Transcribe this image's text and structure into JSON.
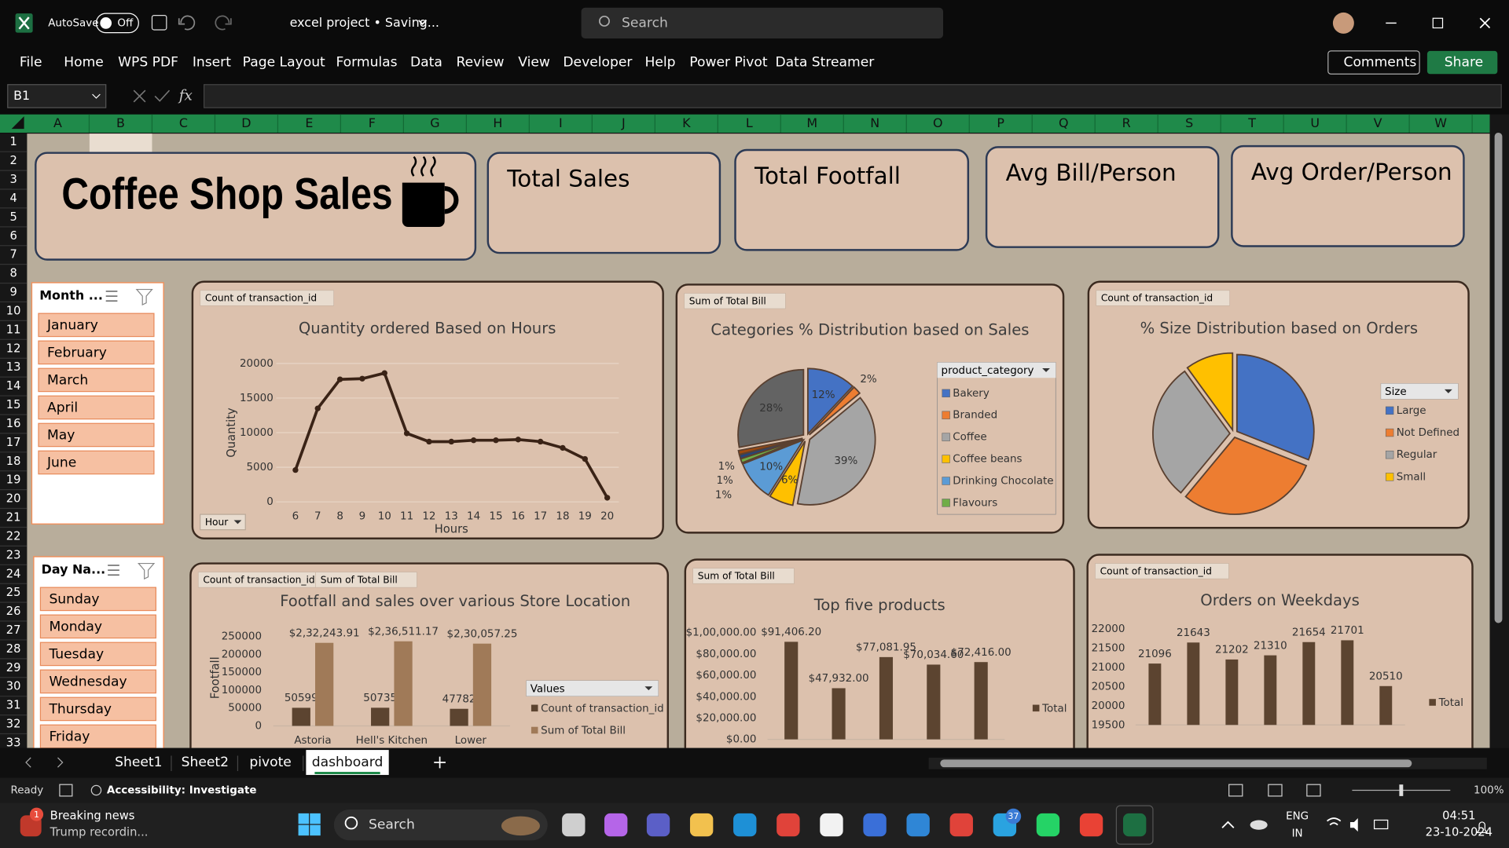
{
  "title_bar": {
    "autosave_label": "AutoSave",
    "autosave_state": "Off",
    "document_title": "excel project • Saving...",
    "search_placeholder": "Search"
  },
  "ribbon_tabs": [
    "File",
    "Home",
    "WPS PDF",
    "Insert",
    "Page Layout",
    "Formulas",
    "Data",
    "Review",
    "View",
    "Developer",
    "Help",
    "Power Pivot",
    "Data Streamer"
  ],
  "ribbon_buttons": {
    "comments": "Comments",
    "share": "Share"
  },
  "formula_bar": {
    "name_box": "B1",
    "fx": "fx"
  },
  "columns": [
    "A",
    "B",
    "C",
    "D",
    "E",
    "F",
    "G",
    "H",
    "I",
    "J",
    "K",
    "L",
    "M",
    "N",
    "O",
    "P",
    "Q",
    "R",
    "S",
    "T",
    "U",
    "V",
    "W"
  ],
  "rows": [
    1,
    2,
    3,
    4,
    5,
    6,
    7,
    8,
    9,
    10,
    11,
    12,
    13,
    14,
    15,
    16,
    17,
    18,
    19,
    20,
    21,
    22,
    23,
    24,
    25,
    26,
    27,
    28,
    29,
    30,
    31,
    32,
    33
  ],
  "dashboard": {
    "title": "Coffee Shop Sales",
    "kpi_cards": [
      "Total Sales",
      "Total Footfall",
      "Avg Bill/Person",
      "Avg Order/Person"
    ],
    "slicers": [
      {
        "header": "Month ...",
        "items": [
          "January",
          "February",
          "March",
          "April",
          "May",
          "June"
        ]
      },
      {
        "header": "Day Na...",
        "items": [
          "Sunday",
          "Monday",
          "Tuesday",
          "Wednesday",
          "Thursday",
          "Friday"
        ]
      }
    ]
  },
  "chart_data": [
    {
      "type": "line",
      "title": "Quantity ordered Based on Hours",
      "field_buttons": [
        "Count of transaction_id"
      ],
      "axis_button": "Hour",
      "x_label": "Hours",
      "y_label": "Quantity",
      "categories": [
        "6",
        "7",
        "8",
        "9",
        "10",
        "11",
        "12",
        "13",
        "14",
        "15",
        "16",
        "17",
        "18",
        "19",
        "20"
      ],
      "values": [
        4600,
        13500,
        17700,
        17800,
        18600,
        9900,
        8700,
        8700,
        8900,
        8900,
        9000,
        8700,
        7800,
        6200,
        600
      ],
      "color": "#3a2316",
      "ylim": [
        0,
        20000
      ],
      "yticks": [
        0,
        5000,
        10000,
        15000,
        20000
      ],
      "grid": true
    },
    {
      "type": "pie",
      "title": "Categories % Distribution based on Sales",
      "field_buttons": [
        "Sum of Total Bill"
      ],
      "legend_title": "product_category",
      "categories": [
        "Bakery",
        "Branded",
        "Coffee",
        "Coffee beans",
        "Drinking Chocolate",
        "Flavours",
        null,
        null,
        null
      ],
      "values": [
        12,
        2,
        39,
        6,
        10,
        1,
        1,
        1,
        28
      ],
      "value_labels": [
        "12%",
        "2%",
        "39%",
        "6%",
        "10%",
        "1%",
        "1%",
        "1%",
        "28%"
      ],
      "colors": [
        "#4472c4",
        "#ed7d31",
        "#a5a5a5",
        "#ffc000",
        "#5b9bd5",
        "#70ad47",
        "#264478",
        "#9e480e",
        "#636363"
      ]
    },
    {
      "type": "pie",
      "title": "% Size Distribution based on Orders",
      "field_buttons": [
        "Count of transaction_id"
      ],
      "legend_title": "Size",
      "categories": [
        "Large",
        "Not Defined",
        "Regular",
        "Small"
      ],
      "values": [
        31,
        30,
        29,
        10
      ],
      "colors": [
        "#4472c4",
        "#ed7d31",
        "#a5a5a5",
        "#ffc000"
      ]
    },
    {
      "type": "bar",
      "title": "Footfall and sales over various Store Location",
      "field_buttons": [
        "Count of transaction_id",
        "Sum of Total Bill"
      ],
      "y_label": "Footfall",
      "legend_title": "Values",
      "categories": [
        "Astoria",
        "Hell's Kitchen",
        "Lower"
      ],
      "series": [
        {
          "name": "Count of transaction_id",
          "color": "#5c4430",
          "values": [
            50599,
            50735,
            47782
          ]
        },
        {
          "name": "Sum of Total Bill",
          "color": "#a07a58",
          "values": [
            232243.91,
            236511.17,
            230057.25
          ],
          "value_labels": [
            "$2,32,243.91",
            "$2,36,511.17",
            "$2,30,057.25"
          ]
        }
      ],
      "ylim": [
        0,
        250000
      ],
      "yticks": [
        0,
        50000,
        100000,
        150000,
        200000,
        250000
      ]
    },
    {
      "type": "bar",
      "title": "Top five products",
      "field_buttons": [
        "Sum of Total Bill"
      ],
      "categories": [
        null,
        null,
        null,
        null,
        null
      ],
      "series": [
        {
          "name": "Total",
          "color": "#5c4430",
          "values": [
            91406.2,
            47932,
            77081.95,
            70034.6,
            72416
          ],
          "value_labels": [
            "$91,406.20",
            "$47,932.00",
            "$77,081.95",
            "$70,034.60",
            "$72,416.00"
          ]
        }
      ],
      "ylim": [
        0,
        100000
      ],
      "yticks": [
        {
          "value": 0,
          "label": "$0.00"
        },
        {
          "value": 20000,
          "label": "$20,000.00"
        },
        {
          "value": 40000,
          "label": "$40,000.00"
        },
        {
          "value": 60000,
          "label": "$60,000.00"
        },
        {
          "value": 80000,
          "label": "$80,000.00"
        },
        {
          "value": 100000,
          "label": "$1,00,000.00"
        }
      ]
    },
    {
      "type": "bar",
      "title": "Orders on Weekdays",
      "field_buttons": [
        "Count of transaction_id"
      ],
      "categories": [
        null,
        null,
        null,
        null,
        null,
        null,
        null
      ],
      "series": [
        {
          "name": "Total",
          "color": "#5c4430",
          "values": [
            21096,
            21643,
            21202,
            21310,
            21654,
            21701,
            20510
          ]
        }
      ],
      "ylim": [
        19500,
        22000
      ],
      "yticks": [
        19500,
        20000,
        20500,
        21000,
        21500,
        22000
      ]
    }
  ],
  "sheet_tabs": [
    "Sheet1",
    "Sheet2",
    "pivote",
    "dashboard"
  ],
  "active_sheet": 3,
  "status_bar": {
    "status": "Ready",
    "accessibility": "Accessibility: Investigate",
    "zoom": "100%"
  },
  "taskbar": {
    "news_badge": "1",
    "news_title": "Breaking news",
    "news_text": "Trump recordin...",
    "search": "Search",
    "telegram_badge": "37",
    "language": "ENG",
    "region": "IN",
    "time": "04:51",
    "date": "23-10-2024"
  }
}
